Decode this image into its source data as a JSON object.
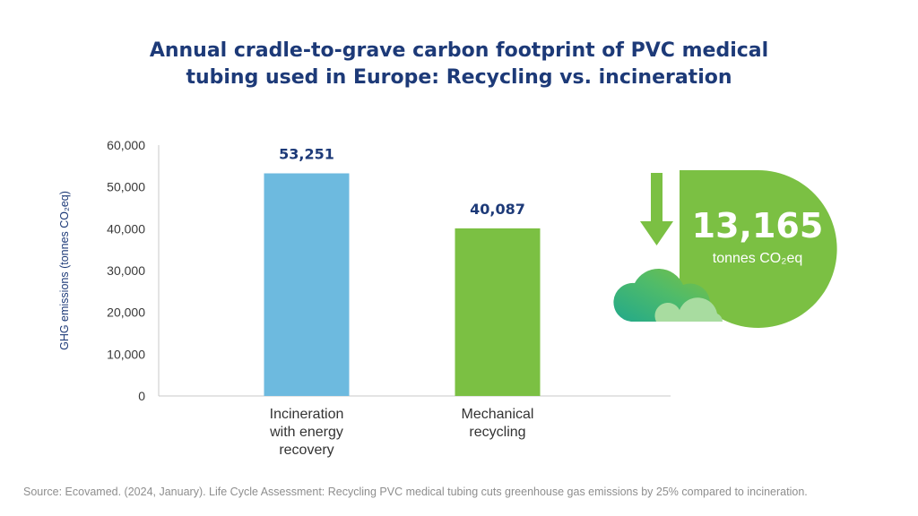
{
  "title_line1": "Annual cradle-to-grave carbon footprint of PVC medical",
  "title_line2": "tubing used in Europe: Recycling vs. incineration",
  "chart_data": {
    "type": "bar",
    "categories": [
      "Incineration with energy recovery",
      "Mechanical recycling"
    ],
    "category_lines": [
      [
        "Incineration",
        "with energy",
        "recovery"
      ],
      [
        "Mechanical",
        "recycling"
      ]
    ],
    "values": [
      53251,
      40087
    ],
    "value_labels": [
      "53,251",
      "40,087"
    ],
    "bar_colors": [
      "#6dbadf",
      "#7bc043"
    ],
    "ylabel": "GHG emissions (tonnes CO₂eq)",
    "ylim": [
      0,
      60000
    ],
    "yticks": [
      0,
      10000,
      20000,
      30000,
      40000,
      50000,
      60000
    ],
    "ytick_labels": [
      "0",
      "10,000",
      "20,000",
      "30,000",
      "40,000",
      "50,000",
      "60,000"
    ],
    "grid": false
  },
  "callout": {
    "value": "13,165",
    "unit": "tonnes CO₂eq",
    "icons": [
      "arrow-down-icon",
      "cloud-icon"
    ],
    "color": "#7bc043"
  },
  "source": "Source: Ecovamed. (2024, January). Life Cycle Assessment: Recycling PVC medical tubing cuts greenhouse gas emissions by 25% compared to incineration."
}
